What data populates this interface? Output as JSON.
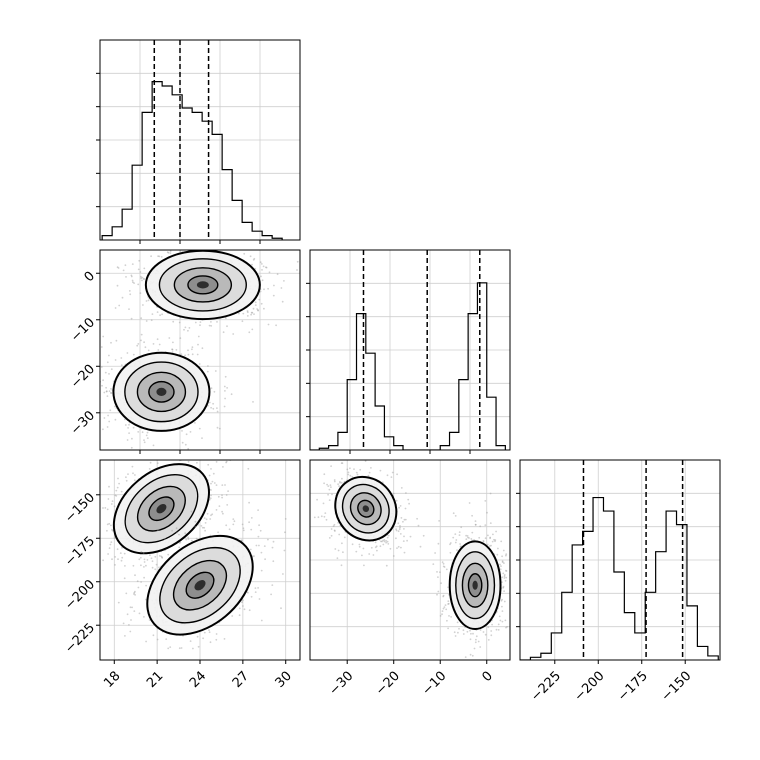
{
  "chart_data": [
    {
      "type": "histogram",
      "panel": "marginal-p0",
      "xlim": [
        17,
        31
      ],
      "x_ticks": [],
      "bins": [
        17.5,
        18.2,
        18.9,
        19.6,
        20.3,
        21.0,
        21.7,
        22.4,
        23.1,
        23.8,
        24.5,
        25.2,
        25.9,
        26.6,
        27.3,
        28.0,
        28.7,
        29.4
      ],
      "counts": [
        0.5,
        1.5,
        3.5,
        8.5,
        14.5,
        18,
        17.5,
        16.5,
        15,
        14.5,
        13.5,
        12,
        8,
        4.5,
        2,
        1,
        0.5,
        0.2
      ],
      "ylim": [
        0,
        20
      ],
      "quantiles": [
        20.8,
        22.6,
        24.6
      ],
      "grid": true
    },
    {
      "type": "contour-scatter",
      "panel": "joint-p0-p1",
      "xlim": [
        17,
        31
      ],
      "ylim": [
        -38,
        5
      ],
      "x_ticks": [],
      "y_ticks": [
        "0",
        "−10",
        "−20",
        "−30"
      ],
      "y_tick_values": [
        0,
        -10,
        -20,
        -30
      ],
      "modes": [
        {
          "cx": 24.2,
          "cy": -2.5,
          "sx": 1.9,
          "sy": 3.5
        },
        {
          "cx": 21.3,
          "cy": -25.5,
          "sx": 1.6,
          "sy": 4.0
        }
      ],
      "grid": true
    },
    {
      "type": "histogram",
      "panel": "marginal-p1",
      "xlim": [
        -38,
        5
      ],
      "x_ticks": [],
      "bins": [
        -37,
        -35,
        -33,
        -31,
        -29,
        -27,
        -25,
        -23,
        -21,
        -19,
        -17,
        -15,
        -13,
        -11,
        -9,
        -7,
        -5,
        -3,
        -1,
        1,
        3
      ],
      "counts": [
        0,
        0.2,
        0.5,
        2,
        8,
        15.5,
        11,
        5,
        1.5,
        0.5,
        0,
        0,
        0,
        0,
        0.5,
        2,
        8,
        15.5,
        19,
        6,
        0.5
      ],
      "ylim": [
        0,
        20
      ],
      "quantiles": [
        -26.5,
        -12.8,
        -1.5
      ],
      "grid": true
    },
    {
      "type": "contour-scatter",
      "panel": "joint-p0-p2",
      "xlim": [
        17,
        31
      ],
      "ylim": [
        -245,
        -130
      ],
      "x_ticks": [
        "18",
        "21",
        "24",
        "27",
        "30"
      ],
      "x_tick_values": [
        18,
        21,
        24,
        27,
        30
      ],
      "y_ticks": [
        "−150",
        "−175",
        "−200",
        "−225"
      ],
      "y_tick_values": [
        -150,
        -175,
        -200,
        -225
      ],
      "modes": [
        {
          "cx": 21.3,
          "cy": -158,
          "sx": 1.8,
          "sy": 10,
          "tilt": -40
        },
        {
          "cx": 24.0,
          "cy": -202,
          "sx": 2.0,
          "sy": 11,
          "tilt": -40
        }
      ],
      "grid": true
    },
    {
      "type": "contour-scatter",
      "panel": "joint-p1-p2",
      "xlim": [
        -38,
        5
      ],
      "ylim": [
        -245,
        -130
      ],
      "x_ticks": [
        "−30",
        "−20",
        "−10",
        "0"
      ],
      "x_tick_values": [
        -30,
        -20,
        -10,
        0
      ],
      "y_ticks": [],
      "modes": [
        {
          "cx": -26,
          "cy": -158,
          "sx": 3.0,
          "sy": 9,
          "tilt": -35
        },
        {
          "cx": -2.5,
          "cy": -202,
          "sx": 2.6,
          "sy": 12,
          "tilt": 0
        }
      ],
      "grid": true
    },
    {
      "type": "histogram",
      "panel": "marginal-p2",
      "xlim": [
        -245,
        -130
      ],
      "x_ticks": [
        "−225",
        "−200",
        "−175",
        "−150"
      ],
      "x_tick_values": [
        -225,
        -200,
        -175,
        -150
      ],
      "bins": [
        -242,
        -236,
        -230,
        -224,
        -218,
        -212,
        -206,
        -200,
        -194,
        -188,
        -182,
        -176,
        -170,
        -164,
        -158,
        -152,
        -146,
        -140,
        -134
      ],
      "counts": [
        0,
        0.2,
        0.5,
        2,
        5,
        8.5,
        9.5,
        12,
        11,
        6.5,
        3.5,
        2,
        5,
        8,
        11,
        10,
        4,
        1,
        0.3
      ],
      "ylim": [
        0,
        13
      ],
      "quantiles": [
        -208.5,
        -172.5,
        -151.5
      ],
      "grid": true
    }
  ]
}
